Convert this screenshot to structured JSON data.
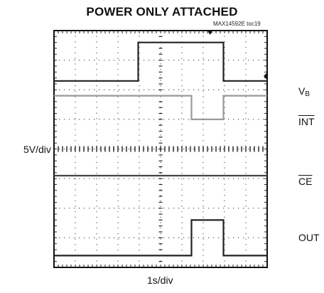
{
  "chart_data": {
    "type": "line",
    "title": "POWER ONLY ATTACHED",
    "figure_code": "MAX14592E toc19",
    "ylabel": "5V/div",
    "xlabel": "1s/div",
    "grid": true,
    "divisions": {
      "x": 10,
      "y": 8
    },
    "xlim": [
      0,
      10
    ],
    "x_units": "div",
    "y_units": "div",
    "series": [
      {
        "name": "V",
        "subscript": "B",
        "overline": false,
        "color": "#222222",
        "x": [
          0,
          3.95,
          3.95,
          7.95,
          7.95,
          10
        ],
        "y": [
          6.3,
          6.3,
          7.6,
          7.6,
          6.3,
          6.3
        ]
      },
      {
        "name": "INT",
        "subscript": "",
        "overline": true,
        "color": "#9a9a9a",
        "x": [
          0,
          6.45,
          6.45,
          7.95,
          7.95,
          10
        ],
        "y": [
          5.8,
          5.8,
          5.0,
          5.0,
          5.8,
          5.8
        ]
      },
      {
        "name": "CE",
        "subscript": "",
        "overline": true,
        "color": "#444444",
        "x": [
          0,
          10
        ],
        "y": [
          3.1,
          3.1
        ]
      },
      {
        "name": "OUT",
        "subscript": "",
        "overline": false,
        "color": "#222222",
        "x": [
          0,
          6.45,
          6.45,
          7.95,
          7.95,
          10
        ],
        "y": [
          0.4,
          0.4,
          1.6,
          1.6,
          0.4,
          0.4
        ]
      }
    ]
  }
}
